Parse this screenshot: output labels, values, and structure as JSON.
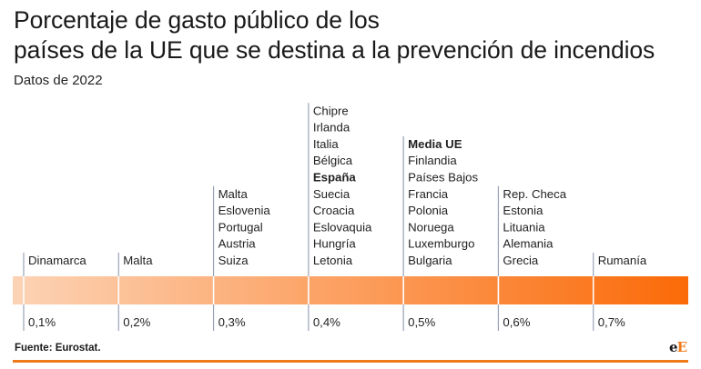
{
  "header": {
    "title_line1": "Porcentaje de gasto público de los",
    "title_line2": "países de la UE que se destina a la prevención de incendios",
    "subtitle": "Datos de 2022"
  },
  "footer": {
    "source": "Fuente: Eurostat.",
    "logo_e1": "e",
    "logo_e2": "E"
  },
  "colors": {
    "bar_start": "#fcd3b5",
    "bar_end": "#fb6a08",
    "tick": "#9aa3b5",
    "accent": "#f07a1a"
  },
  "chart_data": {
    "type": "bar",
    "title": "Porcentaje de gasto público de los países de la UE que se destina a la prevención de incendios",
    "subtitle": "Datos de 2022",
    "categories": [
      "0,1%",
      "0,2%",
      "0,3%",
      "0,4%",
      "0,5%",
      "0,6%",
      "0,7%"
    ],
    "values": [
      0.1,
      0.2,
      0.3,
      0.4,
      0.5,
      0.6,
      0.7
    ],
    "groups": [
      {
        "value": 0.1,
        "label": "0,1%",
        "countries": [
          {
            "name": "Dinamarca",
            "bold": false
          }
        ]
      },
      {
        "value": 0.2,
        "label": "0,2%",
        "countries": [
          {
            "name": "Malta",
            "bold": false
          }
        ]
      },
      {
        "value": 0.3,
        "label": "0,3%",
        "countries": [
          {
            "name": "Malta",
            "bold": false
          },
          {
            "name": "Eslovenia",
            "bold": false
          },
          {
            "name": "Portugal",
            "bold": false
          },
          {
            "name": "Austria",
            "bold": false
          },
          {
            "name": "Suiza",
            "bold": false
          }
        ]
      },
      {
        "value": 0.4,
        "label": "0,4%",
        "countries": [
          {
            "name": "Chipre",
            "bold": false
          },
          {
            "name": "Irlanda",
            "bold": false
          },
          {
            "name": "Italia",
            "bold": false
          },
          {
            "name": "Bélgica",
            "bold": false
          },
          {
            "name": "España",
            "bold": true
          },
          {
            "name": "Suecia",
            "bold": false
          },
          {
            "name": "Croacia",
            "bold": false
          },
          {
            "name": "Eslovaquia",
            "bold": false
          },
          {
            "name": "Hungría",
            "bold": false
          },
          {
            "name": "Letonia",
            "bold": false
          }
        ]
      },
      {
        "value": 0.5,
        "label": "0,5%",
        "countries": [
          {
            "name": "Media UE",
            "bold": true
          },
          {
            "name": "Finlandia",
            "bold": false
          },
          {
            "name": "Países Bajos",
            "bold": false
          },
          {
            "name": "Francia",
            "bold": false
          },
          {
            "name": "Polonia",
            "bold": false
          },
          {
            "name": "Noruega",
            "bold": false
          },
          {
            "name": "Luxemburgo",
            "bold": false
          },
          {
            "name": "Bulgaria",
            "bold": false
          }
        ]
      },
      {
        "value": 0.6,
        "label": "0,6%",
        "countries": [
          {
            "name": "Rep. Checa",
            "bold": false
          },
          {
            "name": "Estonia",
            "bold": false
          },
          {
            "name": "Lituania",
            "bold": false
          },
          {
            "name": "Alemania",
            "bold": false
          },
          {
            "name": "Grecia",
            "bold": false
          }
        ]
      },
      {
        "value": 0.7,
        "label": "0,7%",
        "countries": [
          {
            "name": "Rumanía",
            "bold": false
          }
        ]
      }
    ]
  }
}
